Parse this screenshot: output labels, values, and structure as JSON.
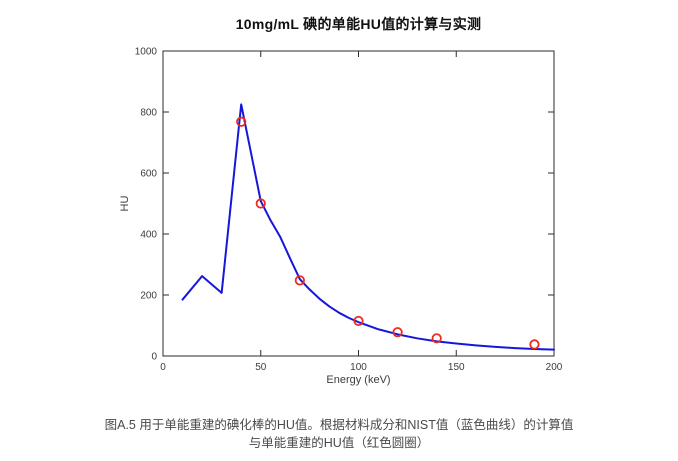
{
  "chart": {
    "title": "10mg/mL 碘的单能HU值的计算与实测"
  },
  "chart_data": {
    "type": "line",
    "title": "10mg/mL 碘的单能HU值的计算与实测",
    "xlabel": "Energy (keV)",
    "ylabel": "HU",
    "xlim": [
      0,
      200
    ],
    "ylim": [
      0,
      1000
    ],
    "xticks": [
      0,
      50,
      100,
      150,
      200
    ],
    "yticks": [
      0,
      200,
      400,
      600,
      800,
      1000
    ],
    "grid": false,
    "box": true,
    "legend": "none",
    "series": [
      {
        "name": "蓝色曲线",
        "type": "line",
        "color": "#1616dd",
        "x": [
          10,
          20,
          30,
          40,
          50,
          55,
          60,
          65,
          70,
          75,
          80,
          85,
          90,
          95,
          100,
          110,
          120,
          130,
          140,
          150,
          160,
          170,
          180,
          190,
          200
        ],
        "y": [
          185,
          262,
          207,
          825,
          508,
          445,
          390,
          320,
          252,
          218,
          188,
          163,
          142,
          125,
          111,
          88,
          71,
          58,
          48,
          41,
          35,
          30,
          26,
          23,
          21
        ]
      },
      {
        "name": "红色圆圈",
        "type": "scatter",
        "marker": "circle-open",
        "color": "#ee2c1e",
        "x": [
          40,
          50,
          70,
          100,
          120,
          140,
          190
        ],
        "y": [
          768,
          500,
          248,
          115,
          78,
          58,
          38
        ]
      }
    ]
  },
  "caption": {
    "line1": "图A.5 用于单能重建的碘化棒的HU值。根据材料成分和NIST值（蓝色曲线）的计算值",
    "line2": "与单能重建的HU值（红色圆圈）"
  },
  "colors": {
    "axis": "#2b2b2b",
    "tick_label": "#3d3d3d",
    "caption": "#4a4a4a",
    "line": "#1616dd",
    "marker": "#ee2c1e"
  }
}
